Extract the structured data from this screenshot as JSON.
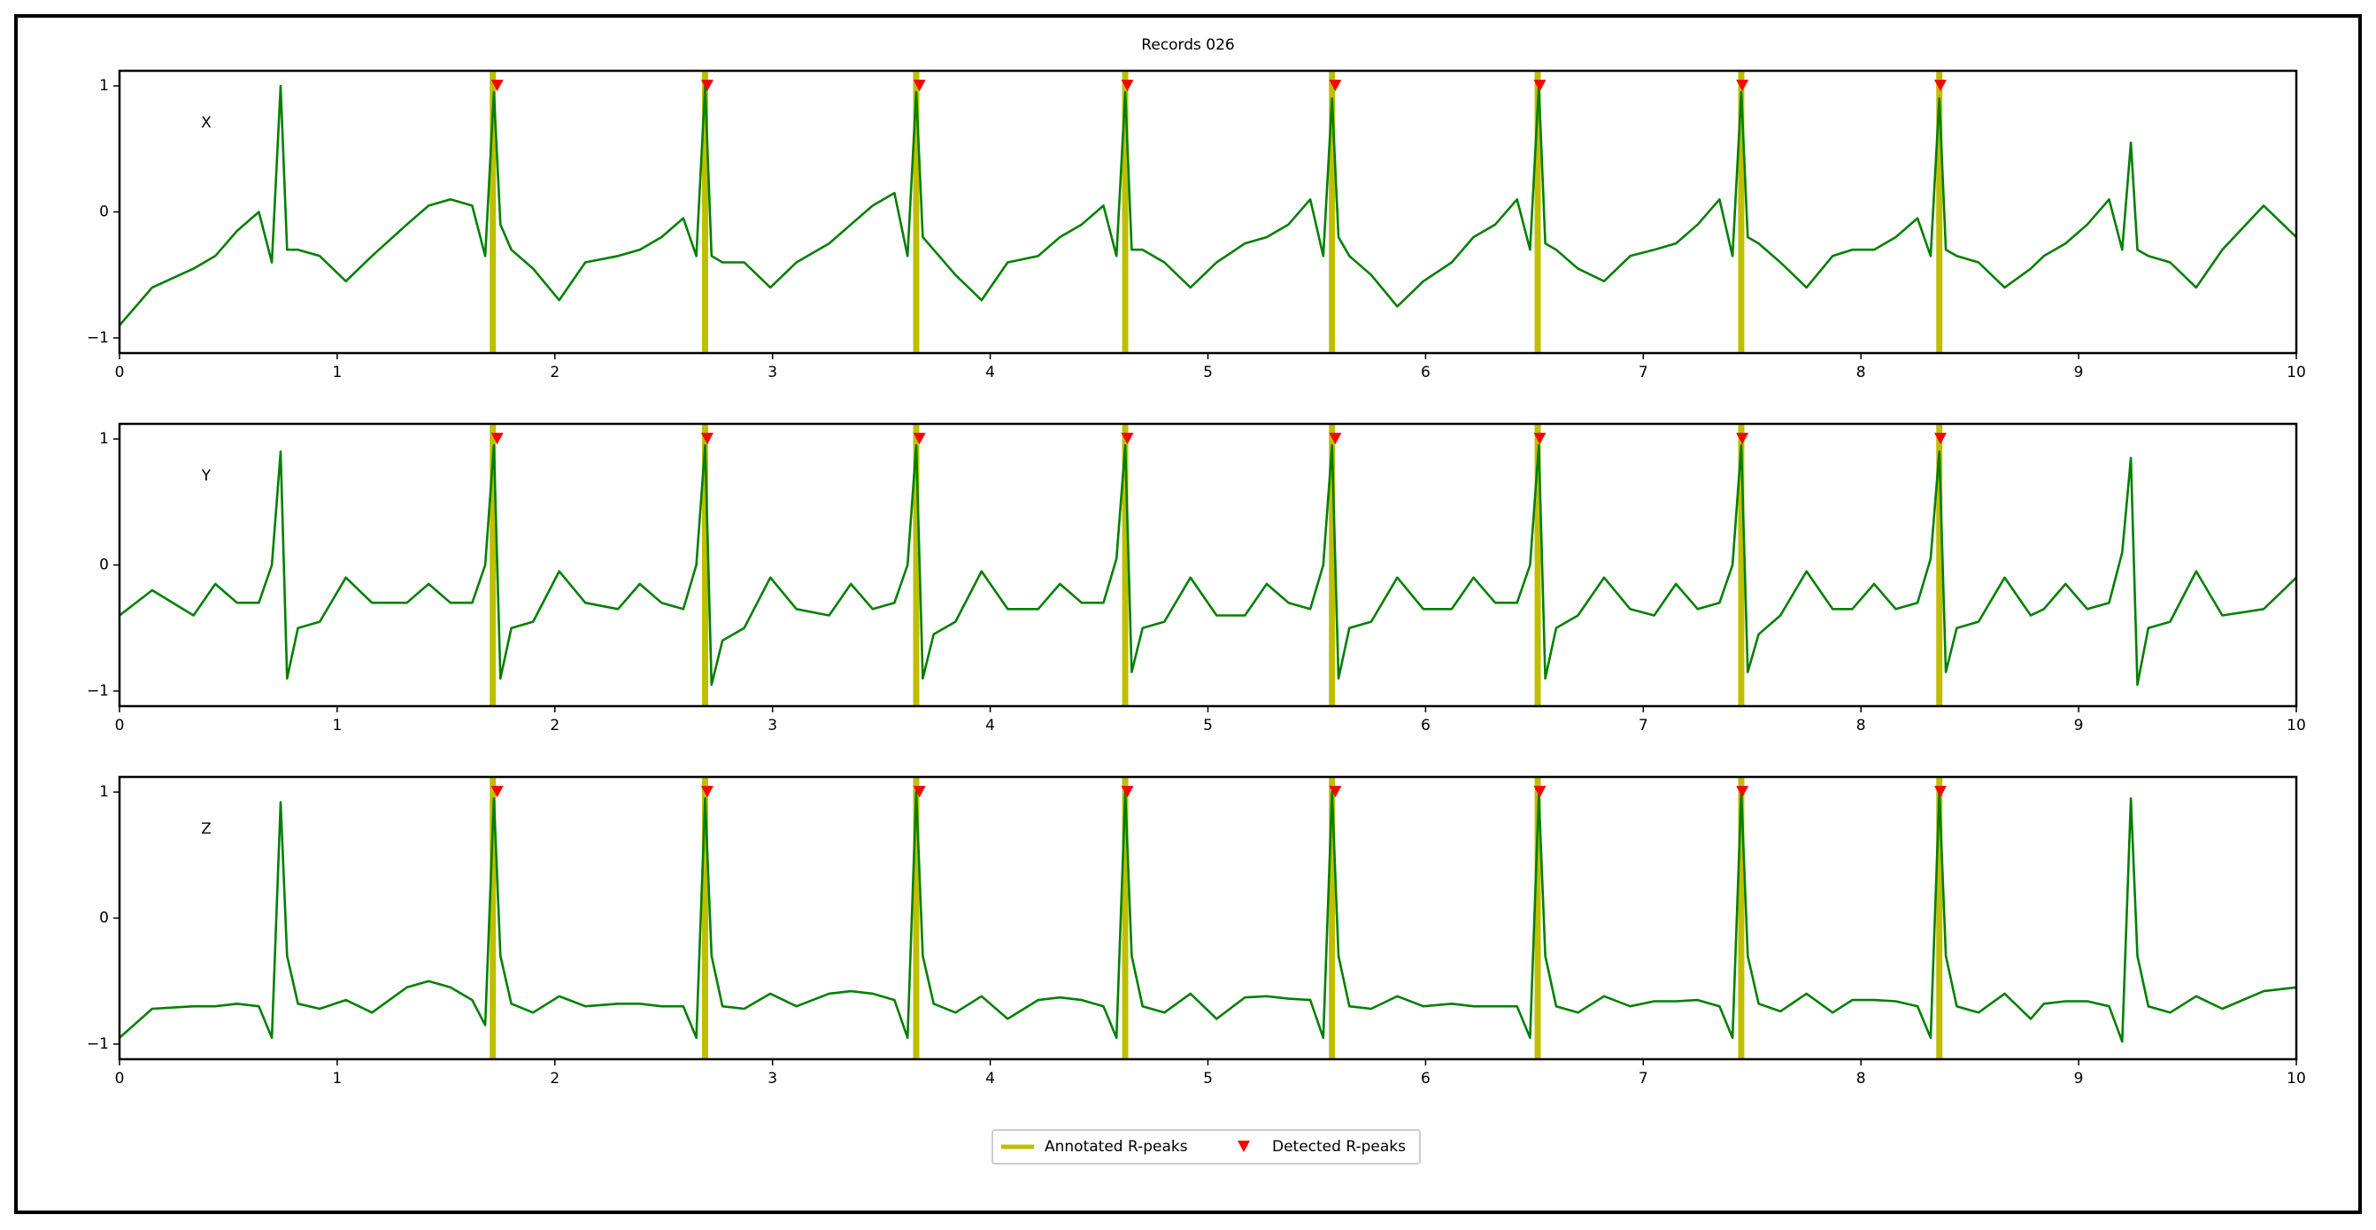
{
  "title": "Records 026",
  "chart_data": [
    {
      "type": "line",
      "label": "X",
      "x": [
        0,
        0.15,
        0.34,
        0.44,
        0.54,
        0.64,
        0.7,
        0.74,
        0.77,
        0.82,
        0.92,
        1.04,
        1.16,
        1.32,
        1.42,
        1.52,
        1.62,
        1.68,
        1.72,
        1.75,
        1.8,
        1.9,
        2.02,
        2.14,
        2.29,
        2.39,
        2.49,
        2.59,
        2.65,
        2.69,
        2.72,
        2.77,
        2.87,
        2.99,
        3.11,
        3.26,
        3.36,
        3.46,
        3.56,
        3.62,
        3.66,
        3.69,
        3.74,
        3.84,
        3.96,
        4.08,
        4.22,
        4.32,
        4.42,
        4.52,
        4.58,
        4.62,
        4.65,
        4.7,
        4.8,
        4.92,
        5.04,
        5.17,
        5.27,
        5.37,
        5.47,
        5.53,
        5.57,
        5.6,
        5.65,
        5.75,
        5.87,
        5.99,
        6.12,
        6.22,
        6.32,
        6.42,
        6.48,
        6.52,
        6.55,
        6.6,
        6.7,
        6.82,
        6.94,
        7.05,
        7.15,
        7.25,
        7.35,
        7.41,
        7.45,
        7.48,
        7.53,
        7.63,
        7.75,
        7.87,
        7.96,
        8.06,
        8.16,
        8.26,
        8.32,
        8.36,
        8.39,
        8.44,
        8.54,
        8.66,
        8.78,
        8.84,
        8.94,
        9.04,
        9.14,
        9.2,
        9.24,
        9.27,
        9.32,
        9.42,
        9.54,
        9.66,
        9.85,
        10.0
      ],
      "series": [
        {
          "color": "#008000",
          "values": [
            -0.9,
            -0.6,
            -0.45,
            -0.35,
            -0.15,
            0.0,
            -0.4,
            1.0,
            -0.3,
            -0.3,
            -0.35,
            -0.55,
            -0.35,
            -0.1,
            0.05,
            0.1,
            0.05,
            -0.35,
            0.95,
            -0.1,
            -0.3,
            -0.45,
            -0.7,
            -0.4,
            -0.35,
            -0.3,
            -0.2,
            -0.05,
            -0.35,
            1.0,
            -0.35,
            -0.4,
            -0.4,
            -0.6,
            -0.4,
            -0.25,
            -0.1,
            0.05,
            0.15,
            -0.35,
            0.95,
            -0.2,
            -0.3,
            -0.5,
            -0.7,
            -0.4,
            -0.35,
            -0.2,
            -0.1,
            0.05,
            -0.35,
            0.95,
            -0.3,
            -0.3,
            -0.4,
            -0.6,
            -0.4,
            -0.25,
            -0.2,
            -0.1,
            0.1,
            -0.35,
            0.9,
            -0.2,
            -0.35,
            -0.5,
            -0.75,
            -0.55,
            -0.4,
            -0.2,
            -0.1,
            0.1,
            -0.3,
            1.0,
            -0.25,
            -0.3,
            -0.45,
            -0.55,
            -0.35,
            -0.3,
            -0.25,
            -0.1,
            0.1,
            -0.35,
            0.95,
            -0.2,
            -0.25,
            -0.4,
            -0.6,
            -0.35,
            -0.3,
            -0.3,
            -0.2,
            -0.05,
            -0.35,
            0.9,
            -0.3,
            -0.35,
            -0.4,
            -0.6,
            -0.45,
            -0.35,
            -0.25,
            -0.1,
            0.1,
            -0.3,
            0.55,
            -0.3,
            -0.35,
            -0.4,
            -0.6,
            -0.3,
            0.05,
            -0.2
          ]
        },
        {
          "name": "Annotated R-peaks",
          "color": "#bfbf00",
          "x": [
            1.715,
            2.69,
            3.66,
            4.62,
            5.57,
            6.515,
            7.45,
            8.36
          ]
        },
        {
          "name": "Detected R-peaks",
          "color": "#ff0000",
          "x": [
            1.735,
            2.7,
            3.675,
            4.63,
            5.585,
            6.525,
            7.455,
            8.365
          ],
          "values": [
            1,
            1,
            1,
            1,
            1,
            1,
            1,
            1
          ]
        }
      ],
      "xlim": [
        0,
        10
      ],
      "ylim": [
        -1.12,
        1.12
      ],
      "xticks": [
        0,
        1,
        2,
        3,
        4,
        5,
        6,
        7,
        8,
        9,
        10
      ],
      "yticks": [
        {
          "value": -1,
          "label": "−1"
        },
        0,
        1
      ]
    },
    {
      "type": "line",
      "label": "Y",
      "x": [
        0,
        0.15,
        0.34,
        0.44,
        0.54,
        0.64,
        0.7,
        0.74,
        0.77,
        0.82,
        0.92,
        1.04,
        1.16,
        1.32,
        1.42,
        1.52,
        1.62,
        1.68,
        1.72,
        1.75,
        1.8,
        1.9,
        2.02,
        2.14,
        2.29,
        2.39,
        2.49,
        2.59,
        2.65,
        2.69,
        2.72,
        2.77,
        2.87,
        2.99,
        3.11,
        3.26,
        3.36,
        3.46,
        3.56,
        3.62,
        3.66,
        3.69,
        3.74,
        3.84,
        3.96,
        4.08,
        4.22,
        4.32,
        4.42,
        4.52,
        4.58,
        4.62,
        4.65,
        4.7,
        4.8,
        4.92,
        5.04,
        5.17,
        5.27,
        5.37,
        5.47,
        5.53,
        5.57,
        5.6,
        5.65,
        5.75,
        5.87,
        5.99,
        6.12,
        6.22,
        6.32,
        6.42,
        6.48,
        6.52,
        6.55,
        6.6,
        6.7,
        6.82,
        6.94,
        7.05,
        7.15,
        7.25,
        7.35,
        7.41,
        7.45,
        7.48,
        7.53,
        7.63,
        7.75,
        7.87,
        7.96,
        8.06,
        8.16,
        8.26,
        8.32,
        8.36,
        8.39,
        8.44,
        8.54,
        8.66,
        8.78,
        8.84,
        8.94,
        9.04,
        9.14,
        9.2,
        9.24,
        9.27,
        9.32,
        9.42,
        9.54,
        9.66,
        9.85,
        10.0
      ],
      "series": [
        {
          "color": "#008000",
          "values": [
            -0.4,
            -0.2,
            -0.4,
            -0.15,
            -0.3,
            -0.3,
            0.0,
            0.9,
            -0.9,
            -0.5,
            -0.45,
            -0.1,
            -0.3,
            -0.3,
            -0.15,
            -0.3,
            -0.3,
            0.0,
            0.95,
            -0.9,
            -0.5,
            -0.45,
            -0.05,
            -0.3,
            -0.35,
            -0.15,
            -0.3,
            -0.35,
            0.0,
            0.95,
            -0.95,
            -0.6,
            -0.5,
            -0.1,
            -0.35,
            -0.4,
            -0.15,
            -0.35,
            -0.3,
            0.0,
            0.95,
            -0.9,
            -0.55,
            -0.45,
            -0.05,
            -0.35,
            -0.35,
            -0.15,
            -0.3,
            -0.3,
            0.05,
            0.95,
            -0.85,
            -0.5,
            -0.45,
            -0.1,
            -0.4,
            -0.4,
            -0.15,
            -0.3,
            -0.35,
            0.0,
            0.95,
            -0.9,
            -0.5,
            -0.45,
            -0.1,
            -0.35,
            -0.35,
            -0.1,
            -0.3,
            -0.3,
            0.0,
            0.95,
            -0.9,
            -0.5,
            -0.4,
            -0.1,
            -0.35,
            -0.4,
            -0.15,
            -0.35,
            -0.3,
            0.0,
            0.95,
            -0.85,
            -0.55,
            -0.4,
            -0.05,
            -0.35,
            -0.35,
            -0.15,
            -0.35,
            -0.3,
            0.05,
            0.9,
            -0.85,
            -0.5,
            -0.45,
            -0.1,
            -0.4,
            -0.35,
            -0.15,
            -0.35,
            -0.3,
            0.1,
            0.85,
            -0.95,
            -0.5,
            -0.45,
            -0.05,
            -0.4,
            -0.35,
            -0.1
          ]
        },
        {
          "color": "#bfbf00",
          "x": [
            1.715,
            2.69,
            3.66,
            4.62,
            5.57,
            6.515,
            7.45,
            8.36
          ]
        },
        {
          "color": "#ff0000",
          "x": [
            1.735,
            2.7,
            3.675,
            4.63,
            5.585,
            6.525,
            7.455,
            8.365
          ],
          "values": [
            1,
            1,
            1,
            1,
            1,
            1,
            1,
            1
          ]
        }
      ],
      "xlim": [
        0,
        10
      ],
      "ylim": [
        -1.12,
        1.12
      ],
      "xticks": [
        0,
        1,
        2,
        3,
        4,
        5,
        6,
        7,
        8,
        9,
        10
      ],
      "yticks": [
        {
          "value": -1,
          "label": "−1"
        },
        0,
        1
      ]
    },
    {
      "type": "line",
      "label": "Z",
      "x": [
        0,
        0.15,
        0.34,
        0.44,
        0.54,
        0.64,
        0.7,
        0.74,
        0.77,
        0.82,
        0.92,
        1.04,
        1.16,
        1.32,
        1.42,
        1.52,
        1.62,
        1.68,
        1.72,
        1.75,
        1.8,
        1.9,
        2.02,
        2.14,
        2.29,
        2.39,
        2.49,
        2.59,
        2.65,
        2.69,
        2.72,
        2.77,
        2.87,
        2.99,
        3.11,
        3.26,
        3.36,
        3.46,
        3.56,
        3.62,
        3.66,
        3.69,
        3.74,
        3.84,
        3.96,
        4.08,
        4.22,
        4.32,
        4.42,
        4.52,
        4.58,
        4.62,
        4.65,
        4.7,
        4.8,
        4.92,
        5.04,
        5.17,
        5.27,
        5.37,
        5.47,
        5.53,
        5.57,
        5.6,
        5.65,
        5.75,
        5.87,
        5.99,
        6.12,
        6.22,
        6.32,
        6.42,
        6.48,
        6.52,
        6.55,
        6.6,
        6.7,
        6.82,
        6.94,
        7.05,
        7.15,
        7.25,
        7.35,
        7.41,
        7.45,
        7.48,
        7.53,
        7.63,
        7.75,
        7.87,
        7.96,
        8.06,
        8.16,
        8.26,
        8.32,
        8.36,
        8.39,
        8.44,
        8.54,
        8.66,
        8.78,
        8.84,
        8.94,
        9.04,
        9.14,
        9.2,
        9.24,
        9.27,
        9.32,
        9.42,
        9.54,
        9.66,
        9.85,
        10.0
      ],
      "series": [
        {
          "color": "#008000",
          "values": [
            -0.95,
            -0.72,
            -0.7,
            -0.7,
            -0.68,
            -0.7,
            -0.95,
            0.92,
            -0.3,
            -0.68,
            -0.72,
            -0.65,
            -0.75,
            -0.55,
            -0.5,
            -0.55,
            -0.65,
            -0.85,
            0.95,
            -0.3,
            -0.68,
            -0.75,
            -0.62,
            -0.7,
            -0.68,
            -0.68,
            -0.7,
            -0.7,
            -0.95,
            0.95,
            -0.3,
            -0.7,
            -0.72,
            -0.6,
            -0.7,
            -0.6,
            -0.58,
            -0.6,
            -0.65,
            -0.95,
            1.0,
            -0.3,
            -0.68,
            -0.75,
            -0.62,
            -0.8,
            -0.65,
            -0.63,
            -0.65,
            -0.7,
            -0.95,
            1.0,
            -0.3,
            -0.7,
            -0.75,
            -0.6,
            -0.8,
            -0.63,
            -0.62,
            -0.64,
            -0.65,
            -0.95,
            1.0,
            -0.3,
            -0.7,
            -0.72,
            -0.62,
            -0.7,
            -0.68,
            -0.7,
            -0.7,
            -0.7,
            -0.95,
            0.98,
            -0.3,
            -0.7,
            -0.75,
            -0.62,
            -0.7,
            -0.66,
            -0.66,
            -0.65,
            -0.7,
            -0.95,
            1.0,
            -0.3,
            -0.68,
            -0.74,
            -0.6,
            -0.75,
            -0.65,
            -0.65,
            -0.66,
            -0.7,
            -0.95,
            1.0,
            -0.3,
            -0.7,
            -0.75,
            -0.6,
            -0.8,
            -0.68,
            -0.66,
            -0.66,
            -0.7,
            -0.98,
            0.95,
            -0.3,
            -0.7,
            -0.75,
            -0.62,
            -0.72,
            -0.58,
            -0.55
          ]
        },
        {
          "color": "#bfbf00",
          "x": [
            1.715,
            2.69,
            3.66,
            4.62,
            5.57,
            6.515,
            7.45,
            8.36
          ]
        },
        {
          "color": "#ff0000",
          "x": [
            1.735,
            2.7,
            3.675,
            4.63,
            5.585,
            6.525,
            7.455,
            8.365
          ],
          "values": [
            1,
            1,
            1,
            1,
            1,
            1,
            1,
            1
          ]
        }
      ],
      "xlim": [
        0,
        10
      ],
      "ylim": [
        -1.12,
        1.12
      ],
      "xticks": [
        0,
        1,
        2,
        3,
        4,
        5,
        6,
        7,
        8,
        9,
        10
      ],
      "yticks": [
        {
          "value": -1,
          "label": "−1"
        },
        0,
        1
      ]
    }
  ]
}
